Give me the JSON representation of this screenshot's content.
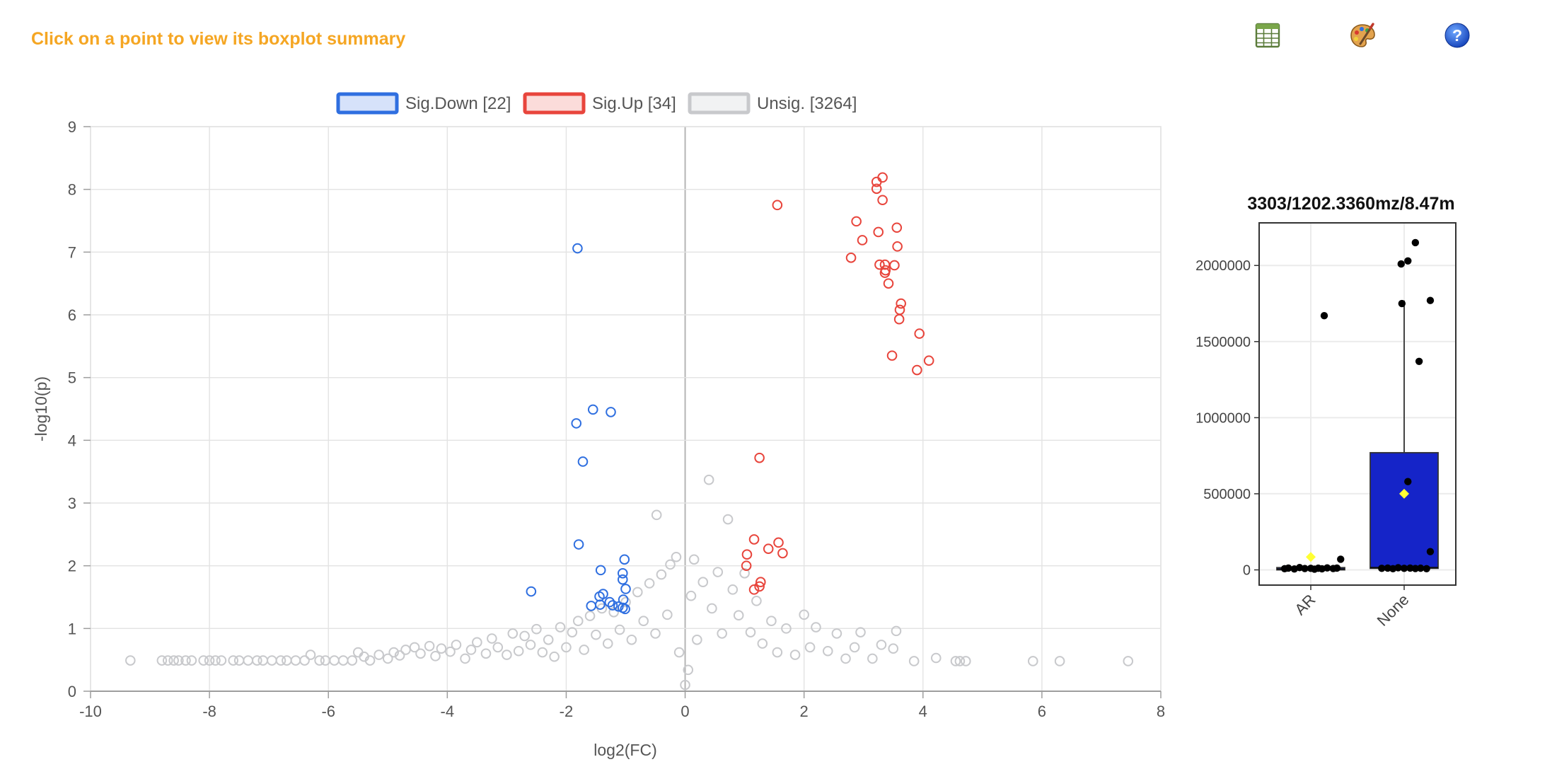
{
  "header": {
    "hint": "Click on a point to view its boxplot summary"
  },
  "toolbar": [
    {
      "name": "table-icon",
      "title": "table"
    },
    {
      "name": "palette-icon",
      "title": "palette"
    },
    {
      "name": "help-icon",
      "title": "help"
    }
  ],
  "colors": {
    "down": "#2f6fe0",
    "up": "#e8453c",
    "unsig": "#c8c9cc",
    "hint": "#f5a623",
    "box_fill": "#1524c8"
  },
  "chart_data": [
    {
      "type": "scatter",
      "title": "",
      "xlabel": "log2(FC)",
      "ylabel": "-log10(p)",
      "xlim": [
        -10,
        8
      ],
      "ylim": [
        0,
        9
      ],
      "xticks": [
        -10,
        -8,
        -6,
        -4,
        -2,
        0,
        2,
        4,
        6,
        8
      ],
      "yticks": [
        0,
        1,
        2,
        3,
        4,
        5,
        6,
        7,
        8,
        9
      ],
      "grid": true,
      "legend_position": "top",
      "legend": [
        {
          "label": "Sig.Down [22]",
          "color": "#2f6fe0",
          "fill": "#d6e2fa"
        },
        {
          "label": "Sig.Up [34]",
          "color": "#e8453c",
          "fill": "#fbdcda"
        },
        {
          "label": "Unsig. [3264]",
          "color": "#c8c9cc",
          "fill": "#f1f2f3"
        }
      ],
      "series": [
        {
          "name": "Sig.Down [22]",
          "color": "#2f6fe0",
          "points": [
            [
              -1.81,
              7.06
            ],
            [
              -1.83,
              4.27
            ],
            [
              -1.55,
              4.49
            ],
            [
              -1.25,
              4.45
            ],
            [
              -1.72,
              3.66
            ],
            [
              -1.79,
              2.34
            ],
            [
              -2.59,
              1.59
            ],
            [
              -1.42,
              1.93
            ],
            [
              -1.02,
              2.1
            ],
            [
              -1.05,
              1.88
            ],
            [
              -1.05,
              1.78
            ],
            [
              -1.0,
              1.63
            ],
            [
              -1.38,
              1.55
            ],
            [
              -1.44,
              1.51
            ],
            [
              -1.58,
              1.36
            ],
            [
              -1.43,
              1.38
            ],
            [
              -1.27,
              1.42
            ],
            [
              -1.22,
              1.37
            ],
            [
              -1.04,
              1.46
            ],
            [
              -1.12,
              1.35
            ],
            [
              -1.05,
              1.33
            ],
            [
              -1.01,
              1.31
            ]
          ]
        },
        {
          "name": "Sig.Up [34]",
          "color": "#e8453c",
          "points": [
            [
              3.32,
              8.19
            ],
            [
              3.22,
              8.12
            ],
            [
              3.22,
              8.01
            ],
            [
              3.32,
              7.83
            ],
            [
              1.55,
              7.75
            ],
            [
              2.88,
              7.49
            ],
            [
              3.56,
              7.39
            ],
            [
              3.25,
              7.32
            ],
            [
              2.98,
              7.19
            ],
            [
              3.57,
              7.09
            ],
            [
              2.79,
              6.91
            ],
            [
              3.27,
              6.8
            ],
            [
              3.36,
              6.8
            ],
            [
              3.52,
              6.79
            ],
            [
              3.37,
              6.71
            ],
            [
              3.36,
              6.67
            ],
            [
              3.42,
              6.5
            ],
            [
              3.63,
              6.18
            ],
            [
              3.61,
              6.08
            ],
            [
              3.6,
              5.93
            ],
            [
              3.94,
              5.7
            ],
            [
              3.48,
              5.35
            ],
            [
              4.1,
              5.27
            ],
            [
              3.9,
              5.12
            ],
            [
              1.25,
              3.72
            ],
            [
              1.16,
              2.42
            ],
            [
              1.57,
              2.37
            ],
            [
              1.4,
              2.27
            ],
            [
              1.64,
              2.2
            ],
            [
              1.04,
              2.18
            ],
            [
              1.03,
              2.0
            ],
            [
              1.27,
              1.74
            ],
            [
              1.25,
              1.67
            ],
            [
              1.16,
              1.62
            ]
          ]
        },
        {
          "name": "Unsig. [3264]",
          "color": "#c8c9cc",
          "points": [
            [
              -9.33,
              0.49
            ],
            [
              -8.8,
              0.49
            ],
            [
              -8.7,
              0.49
            ],
            [
              -8.6,
              0.49
            ],
            [
              -8.52,
              0.49
            ],
            [
              -8.4,
              0.49
            ],
            [
              -8.3,
              0.49
            ],
            [
              -8.1,
              0.49
            ],
            [
              -8.0,
              0.49
            ],
            [
              -7.9,
              0.49
            ],
            [
              -7.8,
              0.49
            ],
            [
              -7.6,
              0.49
            ],
            [
              -7.5,
              0.49
            ],
            [
              -7.35,
              0.49
            ],
            [
              -7.2,
              0.49
            ],
            [
              -7.1,
              0.49
            ],
            [
              -6.95,
              0.49
            ],
            [
              -6.8,
              0.49
            ],
            [
              -6.7,
              0.49
            ],
            [
              -6.55,
              0.49
            ],
            [
              -6.4,
              0.49
            ],
            [
              -6.3,
              0.58
            ],
            [
              -6.15,
              0.49
            ],
            [
              -6.05,
              0.49
            ],
            [
              -5.9,
              0.49
            ],
            [
              -5.75,
              0.49
            ],
            [
              -5.6,
              0.49
            ],
            [
              -5.5,
              0.62
            ],
            [
              -5.4,
              0.55
            ],
            [
              -5.3,
              0.49
            ],
            [
              -5.15,
              0.58
            ],
            [
              -5.0,
              0.52
            ],
            [
              -4.9,
              0.62
            ],
            [
              -4.8,
              0.57
            ],
            [
              -4.7,
              0.66
            ],
            [
              -4.55,
              0.7
            ],
            [
              -4.45,
              0.6
            ],
            [
              -4.3,
              0.72
            ],
            [
              -4.2,
              0.56
            ],
            [
              -4.1,
              0.68
            ],
            [
              -3.95,
              0.63
            ],
            [
              -3.85,
              0.74
            ],
            [
              -3.7,
              0.52
            ],
            [
              -3.6,
              0.66
            ],
            [
              -3.5,
              0.78
            ],
            [
              -3.35,
              0.6
            ],
            [
              -3.25,
              0.84
            ],
            [
              -3.15,
              0.7
            ],
            [
              -3.0,
              0.58
            ],
            [
              -2.9,
              0.92
            ],
            [
              -2.8,
              0.64
            ],
            [
              -2.7,
              0.88
            ],
            [
              -2.6,
              0.74
            ],
            [
              -2.5,
              0.99
            ],
            [
              -2.4,
              0.62
            ],
            [
              -2.3,
              0.82
            ],
            [
              -2.2,
              0.55
            ],
            [
              -2.1,
              1.02
            ],
            [
              -2.0,
              0.7
            ],
            [
              -1.9,
              0.94
            ],
            [
              -1.8,
              1.12
            ],
            [
              -1.7,
              0.66
            ],
            [
              -1.6,
              1.2
            ],
            [
              -1.5,
              0.9
            ],
            [
              -1.4,
              1.32
            ],
            [
              -1.3,
              0.76
            ],
            [
              -1.2,
              1.26
            ],
            [
              -1.1,
              0.98
            ],
            [
              -1.0,
              1.42
            ],
            [
              -0.9,
              0.82
            ],
            [
              -0.8,
              1.58
            ],
            [
              -0.7,
              1.12
            ],
            [
              -0.6,
              1.72
            ],
            [
              -0.5,
              0.92
            ],
            [
              -0.48,
              2.81
            ],
            [
              -0.4,
              1.86
            ],
            [
              -0.3,
              1.22
            ],
            [
              -0.25,
              2.02
            ],
            [
              -0.15,
              2.14
            ],
            [
              -0.1,
              0.62
            ],
            [
              0.0,
              0.1
            ],
            [
              0.05,
              0.34
            ],
            [
              0.1,
              1.52
            ],
            [
              0.15,
              2.1
            ],
            [
              0.2,
              0.82
            ],
            [
              0.3,
              1.74
            ],
            [
              0.4,
              3.37
            ],
            [
              0.45,
              1.32
            ],
            [
              0.55,
              1.9
            ],
            [
              0.62,
              0.92
            ],
            [
              0.72,
              2.74
            ],
            [
              0.8,
              1.62
            ],
            [
              0.9,
              1.21
            ],
            [
              1.0,
              1.88
            ],
            [
              1.1,
              0.94
            ],
            [
              1.2,
              1.44
            ],
            [
              1.3,
              0.76
            ],
            [
              1.45,
              1.12
            ],
            [
              1.55,
              0.62
            ],
            [
              1.7,
              1.0
            ],
            [
              1.85,
              0.58
            ],
            [
              2.0,
              1.22
            ],
            [
              2.1,
              0.7
            ],
            [
              2.2,
              1.02
            ],
            [
              2.4,
              0.64
            ],
            [
              2.55,
              0.92
            ],
            [
              2.7,
              0.52
            ],
            [
              2.85,
              0.7
            ],
            [
              2.95,
              0.94
            ],
            [
              3.15,
              0.52
            ],
            [
              3.3,
              0.74
            ],
            [
              3.55,
              0.96
            ],
            [
              3.5,
              0.68
            ],
            [
              3.85,
              0.48
            ],
            [
              4.22,
              0.53
            ],
            [
              4.55,
              0.48
            ],
            [
              4.62,
              0.48
            ],
            [
              4.72,
              0.48
            ],
            [
              5.85,
              0.48
            ],
            [
              6.3,
              0.48
            ],
            [
              7.45,
              0.48
            ]
          ]
        }
      ]
    },
    {
      "type": "box",
      "title": "3303/1202.3360mz/8.47m",
      "categories": [
        "AR",
        "None"
      ],
      "ylim": [
        -100000,
        2280000
      ],
      "yticks": [
        "0",
        "500000",
        "1000000",
        "1500000",
        "2000000"
      ],
      "grid": true,
      "boxes": [
        {
          "category": "AR",
          "q1": 0,
          "median": 5000,
          "q3": 15000,
          "whisker_high": 15000,
          "mean": 85000,
          "points": [
            [
              -0.35,
              8000
            ],
            [
              -0.3,
              12000
            ],
            [
              -0.22,
              6000
            ],
            [
              -0.15,
              15000
            ],
            [
              -0.08,
              9000
            ],
            [
              0.0,
              10000
            ],
            [
              0.05,
              5000
            ],
            [
              0.1,
              11000
            ],
            [
              0.15,
              7000
            ],
            [
              0.22,
              13000
            ],
            [
              0.3,
              9000
            ],
            [
              0.35,
              12000
            ],
            [
              0.18,
              1670000
            ],
            [
              0.4,
              70000
            ]
          ]
        },
        {
          "category": "None",
          "q1": 10000,
          "median": 15000,
          "q3": 770000,
          "whisker_high": 1770000,
          "mean": 500000,
          "points": [
            [
              -0.3,
              10000
            ],
            [
              -0.22,
              12000
            ],
            [
              -0.15,
              8000
            ],
            [
              -0.08,
              14000
            ],
            [
              0.0,
              10000
            ],
            [
              0.08,
              12000
            ],
            [
              0.15,
              9000
            ],
            [
              0.22,
              11000
            ],
            [
              0.3,
              8000
            ],
            [
              0.35,
              120000
            ],
            [
              0.05,
              580000
            ],
            [
              -0.03,
              1750000
            ],
            [
              0.2,
              1370000
            ],
            [
              0.35,
              1770000
            ],
            [
              -0.04,
              2010000
            ],
            [
              0.05,
              2030000
            ],
            [
              0.15,
              2150000
            ]
          ]
        }
      ]
    }
  ]
}
